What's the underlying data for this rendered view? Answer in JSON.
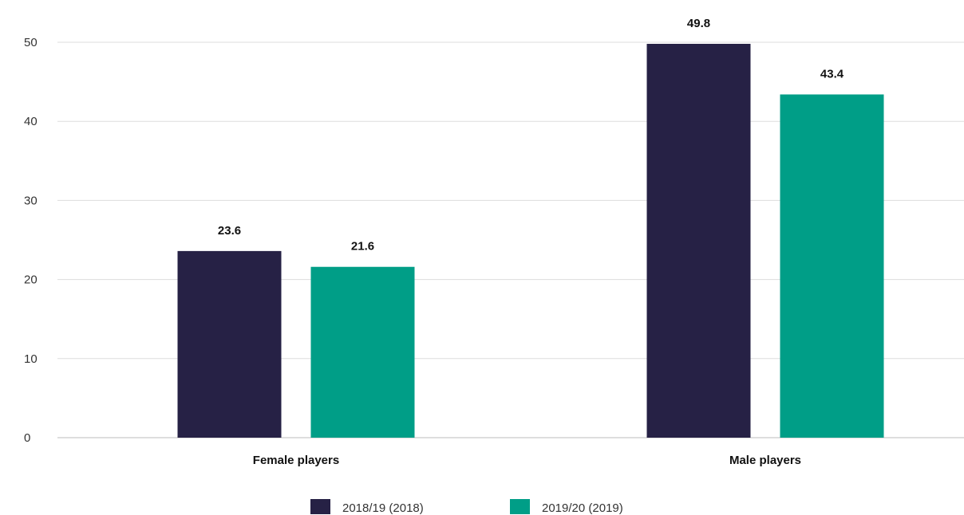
{
  "chart_data": {
    "type": "bar",
    "categories": [
      "Female players",
      "Male players"
    ],
    "series": [
      {
        "name": "2018/19 (2018)",
        "values": [
          23.6,
          49.8
        ],
        "color": "#262145"
      },
      {
        "name": "2019/20 (2019)",
        "values": [
          21.6,
          43.4
        ],
        "color": "#009e87"
      }
    ],
    "y_ticks": [
      "0",
      "10",
      "20",
      "30",
      "40",
      "50"
    ],
    "ylim": [
      0,
      50
    ],
    "grid": true,
    "legend_position": "bottom-center",
    "title": "",
    "xlabel": "",
    "ylabel": ""
  }
}
